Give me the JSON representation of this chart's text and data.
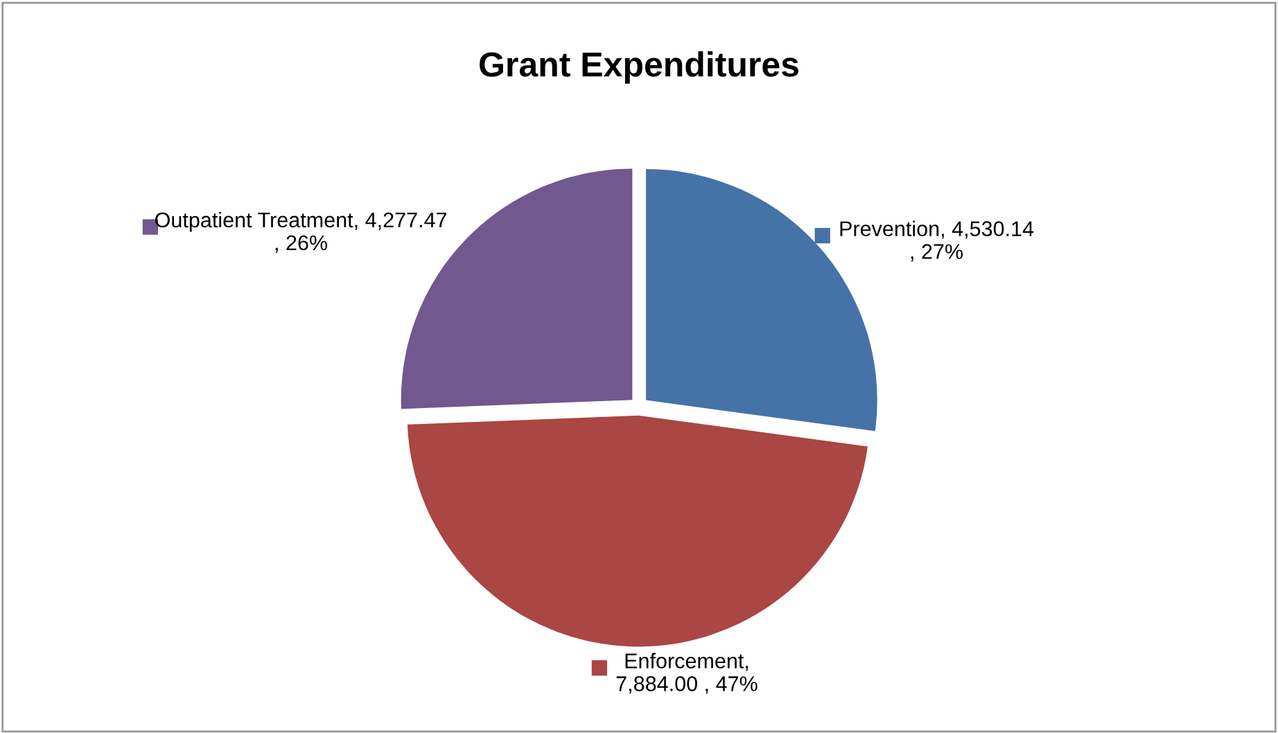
{
  "chart_data": {
    "type": "pie",
    "title": "Grant Expenditures",
    "categories": [
      "Prevention",
      "Enforcement",
      "Outpatient Treatment"
    ],
    "values": [
      4530.14,
      7884.0,
      4277.47
    ],
    "colors": [
      "#4572a7",
      "#aa4643",
      "#71588f"
    ],
    "value_labels": [
      ", 4,530.14\n, 27%",
      ",\n7,884.00 , 47%",
      ", 4,277.47\n, 26%"
    ],
    "legend": "bottom left"
  }
}
